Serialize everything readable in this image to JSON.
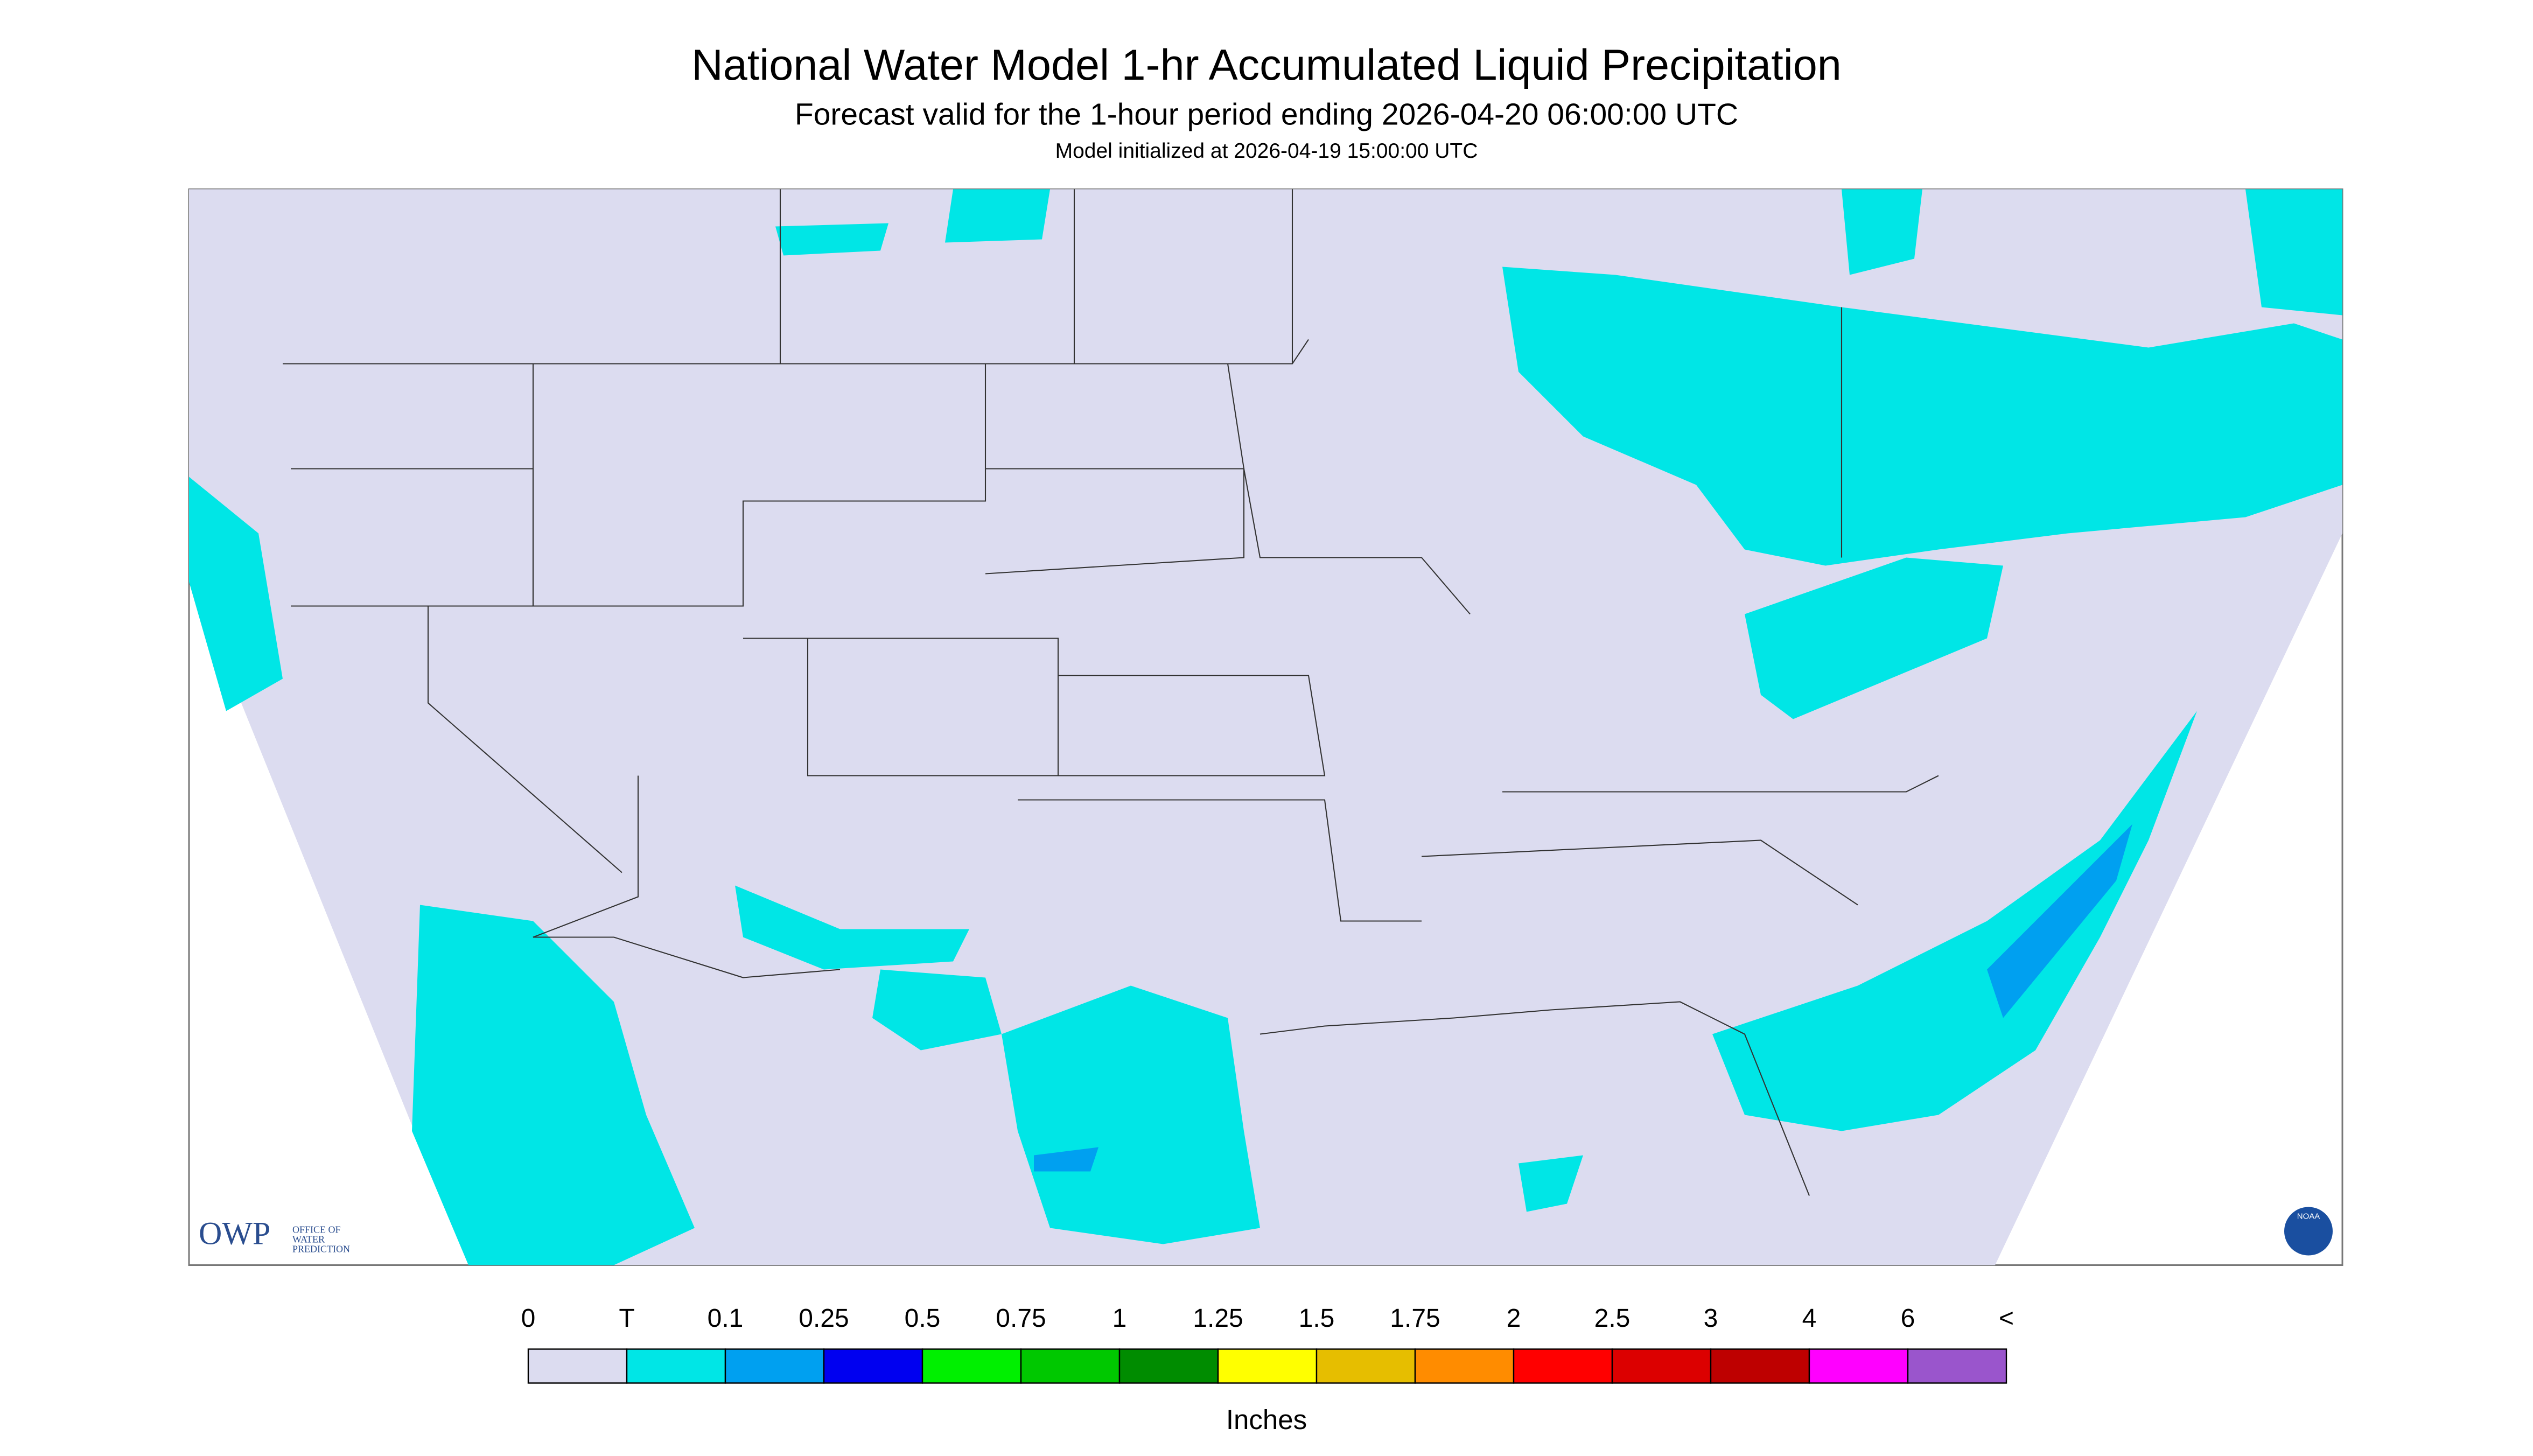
{
  "header": {
    "title": "National Water Model 1-hr Accumulated Liquid Precipitation",
    "subtitle": "Forecast valid for the 1-hour period ending 2026-04-20 06:00:00 UTC",
    "init": "Model initialized at 2026-04-19 15:00:00 UTC"
  },
  "logos": {
    "owp": "OWP",
    "owp_text": [
      "OFFICE OF",
      "WATER",
      "PREDICTION"
    ],
    "noaa": "NOAA"
  },
  "legend": {
    "labels": [
      "0",
      "T",
      "0.1",
      "0.25",
      "0.5",
      "0.75",
      "1",
      "1.25",
      "1.5",
      "1.75",
      "2",
      "2.5",
      "3",
      "4",
      "6",
      "<"
    ],
    "colors": [
      "#dcdcf0",
      "#00e6e6",
      "#00a0f0",
      "#0000f0",
      "#00f000",
      "#00c800",
      "#008c00",
      "#ffff00",
      "#e6be00",
      "#ff8c00",
      "#ff0000",
      "#dc0000",
      "#be0000",
      "#ff00ff",
      "#9a55cc"
    ],
    "unit": "Inches"
  }
}
